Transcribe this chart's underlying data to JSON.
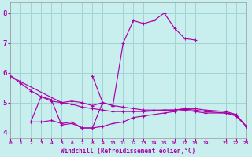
{
  "xlabel": "Windchill (Refroidissement éolien,°C)",
  "bg_color": "#c8eeee",
  "grid_color": "#a0d4d4",
  "line_color": "#aa00aa",
  "xlim": [
    0,
    23
  ],
  "ylim": [
    3.8,
    8.35
  ],
  "xticks": [
    0,
    1,
    2,
    3,
    4,
    5,
    6,
    7,
    8,
    9,
    10,
    11,
    12,
    13,
    14,
    15,
    16,
    17,
    18,
    19,
    21,
    22,
    23
  ],
  "yticks": [
    4,
    5,
    6,
    7,
    8
  ],
  "series": [
    {
      "x": [
        10,
        11,
        12,
        13,
        14,
        15,
        16,
        17,
        18
      ],
      "y": [
        4.9,
        7.0,
        7.75,
        7.65,
        7.75,
        8.0,
        7.5,
        7.15,
        7.1
      ]
    },
    {
      "x": [
        0,
        1,
        5,
        6,
        7,
        8,
        9,
        10,
        11,
        12,
        13,
        14,
        15,
        16,
        17,
        18,
        19,
        21,
        22,
        23
      ],
      "y": [
        5.9,
        5.7,
        5.0,
        5.05,
        5.0,
        4.9,
        5.0,
        4.9,
        4.85,
        4.8,
        4.75,
        4.75,
        4.75,
        4.75,
        4.8,
        4.8,
        4.75,
        4.7,
        4.6,
        4.2
      ]
    },
    {
      "x": [
        2,
        3,
        4,
        5,
        6,
        7,
        8,
        9
      ],
      "y": [
        4.35,
        5.2,
        5.1,
        4.25,
        4.3,
        4.15,
        4.15,
        5.0
      ]
    },
    {
      "x": [
        2,
        3,
        4,
        5,
        6,
        7,
        8,
        9,
        10,
        11,
        12,
        13,
        14,
        15,
        16,
        17,
        18,
        19,
        21,
        22,
        23
      ],
      "y": [
        4.35,
        4.35,
        4.4,
        4.3,
        4.35,
        4.15,
        4.15,
        4.2,
        4.3,
        4.35,
        4.5,
        4.55,
        4.6,
        4.65,
        4.7,
        4.75,
        4.7,
        4.65,
        4.65,
        4.55,
        4.2
      ]
    },
    {
      "x": [
        0,
        1,
        2,
        3,
        4,
        5,
        6,
        7,
        8,
        9,
        10,
        11,
        12,
        13,
        14,
        15,
        16,
        17,
        18,
        19,
        21,
        22,
        23
      ],
      "y": [
        5.9,
        5.65,
        5.4,
        5.2,
        5.05,
        5.0,
        4.95,
        4.85,
        4.8,
        4.75,
        4.7,
        4.7,
        4.7,
        4.7,
        4.72,
        4.75,
        4.75,
        4.78,
        4.75,
        4.7,
        4.65,
        4.6,
        4.2
      ]
    },
    {
      "x": [
        8,
        9,
        10
      ],
      "y": [
        5.9,
        5.0,
        4.9
      ]
    }
  ]
}
